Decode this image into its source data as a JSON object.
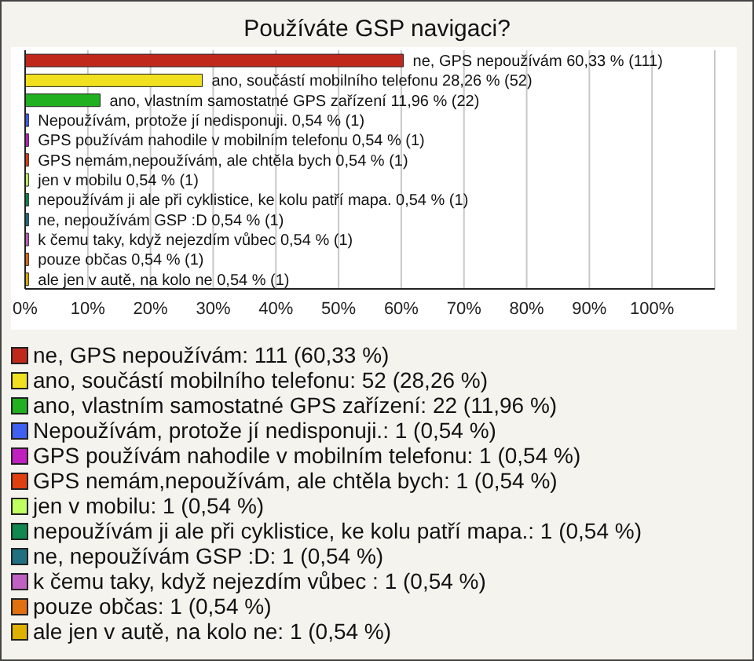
{
  "chart_data": {
    "type": "bar",
    "orientation": "horizontal",
    "title": "Používáte GSP navigaci?",
    "categories": [
      "ne, GPS nepoužívám",
      "ano, součástí mobilního telefonu",
      "ano, vlastním samostatné GPS zařízení",
      "Nepoužívám, protože jí nedisponuji.",
      "GPS používám nahodile v mobilním telefonu",
      "GPS nemám,nepoužívám, ale chtěla bych",
      "jen v mobilu",
      "nepoužívám ji ale při cyklistice, ke kolu patří mapa.",
      "ne, nepoužívám GSP :D",
      "k čemu taky, když nejezdím vůbec ",
      "pouze občas",
      "ale jen v autě, na kolo ne"
    ],
    "values": [
      60.33,
      28.26,
      11.96,
      0.54,
      0.54,
      0.54,
      0.54,
      0.54,
      0.54,
      0.54,
      0.54,
      0.54
    ],
    "value_labels": [
      "60,33 % (111)",
      "28,26 % (52)",
      "11,96 % (22)",
      "0,54 % (1)",
      "0,54 % (1)",
      "0,54 % (1)",
      "0,54 % (1)",
      "0,54 % (1)",
      "0,54 % (1)",
      "0,54 % (1)",
      "0,54 % (1)",
      "0,54 % (1)"
    ],
    "colors": [
      "#c0281c",
      "#f0e020",
      "#20b020",
      "#4060f0",
      "#c020c0",
      "#e04010",
      "#c0ff60",
      "#108850",
      "#207080",
      "#c060c0",
      "#e07010",
      "#e0b000"
    ],
    "xlim": [
      0,
      110
    ],
    "xticks": [
      {
        "value": 0,
        "label": "0%"
      },
      {
        "value": 10,
        "label": "10%"
      },
      {
        "value": 20,
        "label": "20%"
      },
      {
        "value": 30,
        "label": "30%"
      },
      {
        "value": 40,
        "label": "40%"
      },
      {
        "value": 50,
        "label": "50%"
      },
      {
        "value": 60,
        "label": "60%"
      },
      {
        "value": 70,
        "label": "70%"
      },
      {
        "value": 80,
        "label": "80%"
      },
      {
        "value": 90,
        "label": "90%"
      },
      {
        "value": 100,
        "label": "100%"
      }
    ],
    "grid": "x",
    "tick_labels": "x",
    "annotations": [
      "ne, GPS nepoužívám: 111 (60,33 %)",
      "ano, součástí mobilního telefonu: 52 (28,26 %)",
      "ano, vlastním samostatné GPS zařízení: 22 (11,96 %)",
      "Nepoužívám, protože jí nedisponuji.: 1 (0,54 %)",
      "GPS používám nahodile v mobilním telefonu: 1 (0,54 %)",
      "GPS nemám,nepoužívám, ale chtěla bych: 1 (0,54 %)",
      "jen v mobilu: 1 (0,54 %)",
      "nepoužívám ji ale při cyklistice, ke kolu patří mapa.: 1 (0,54 %)",
      "ne, nepoužívám GSP :D: 1 (0,54 %)",
      "k čemu taky, když nejezdím vůbec : 1 (0,54 %)",
      "pouze občas: 1 (0,54 %)",
      "ale jen v autě, na kolo ne: 1 (0,54 %)"
    ]
  }
}
